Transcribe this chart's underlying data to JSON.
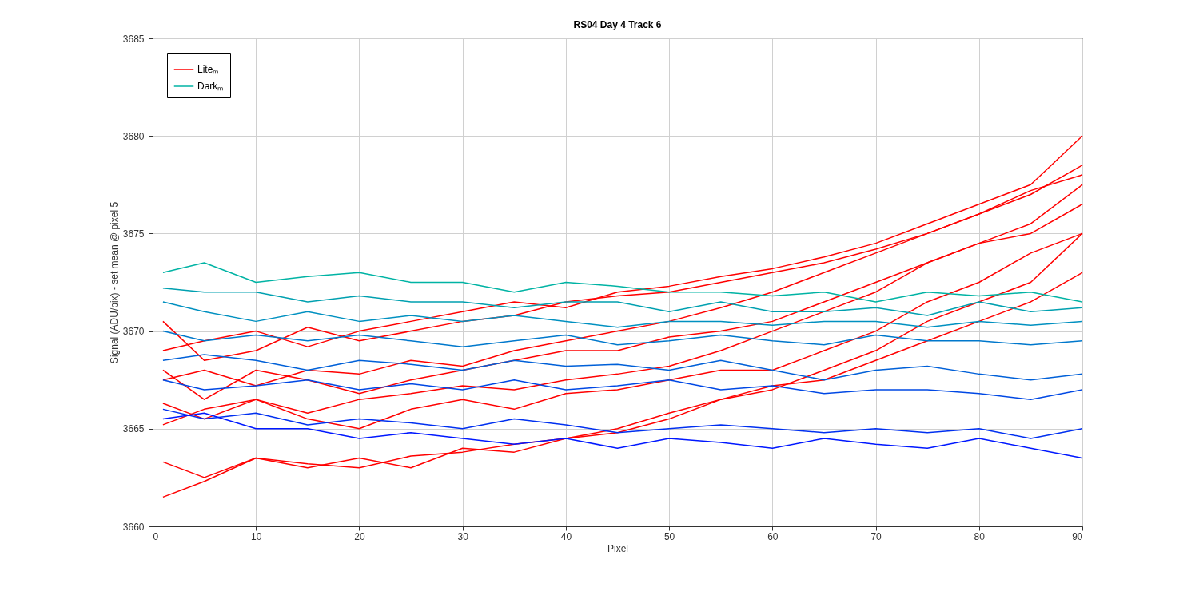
{
  "chart_data": {
    "type": "line",
    "title": "RS04 Day 4 Track 6",
    "xlabel": "Pixel",
    "ylabel": "Signal (ADU/pix) - set mean @ pixel 5",
    "x": [
      1,
      5,
      10,
      15,
      20,
      25,
      30,
      35,
      40,
      45,
      50,
      55,
      60,
      65,
      70,
      75,
      80,
      85,
      90
    ],
    "xlim": [
      0,
      90
    ],
    "xticks": [
      0,
      10,
      20,
      30,
      40,
      50,
      60,
      70,
      80,
      90
    ],
    "ylim": [
      3660,
      3685
    ],
    "yticks": [
      3660,
      3665,
      3670,
      3675,
      3680,
      3685
    ],
    "grid": true,
    "legend": "top left",
    "series": [
      {
        "name": "Liteₘ",
        "color": "#ff0000",
        "values": [
          3661.5,
          3662.3,
          3663.5,
          3663.2,
          3663.0,
          3663.6,
          3663.8,
          3664.2,
          3664.5,
          3665.0,
          3665.8,
          3666.5,
          3667.2,
          3667.5,
          3668.5,
          3669.5,
          3670.5,
          3671.5,
          3673.0
        ]
      },
      {
        "color": "#ff0000",
        "values": [
          3663.3,
          3662.5,
          3663.5,
          3663.0,
          3663.5,
          3663.0,
          3664.0,
          3663.8,
          3664.5,
          3664.8,
          3665.5,
          3666.5,
          3667.0,
          3668.0,
          3669.0,
          3670.5,
          3671.5,
          3672.5,
          3675.0
        ]
      },
      {
        "color": "#ff0000",
        "values": [
          3665.2,
          3666.0,
          3666.5,
          3665.8,
          3666.5,
          3666.8,
          3667.2,
          3667.0,
          3667.5,
          3667.8,
          3668.2,
          3669.0,
          3670.0,
          3671.0,
          3672.0,
          3673.5,
          3674.5,
          3675.5,
          3677.5
        ]
      },
      {
        "color": "#ff0000",
        "values": [
          3667.5,
          3668.0,
          3667.2,
          3668.0,
          3667.8,
          3668.5,
          3668.2,
          3669.0,
          3669.5,
          3670.0,
          3670.5,
          3671.2,
          3672.0,
          3673.0,
          3674.0,
          3675.0,
          3676.0,
          3677.0,
          3678.5
        ]
      },
      {
        "color": "#ff0000",
        "values": [
          3669.0,
          3669.5,
          3670.0,
          3669.2,
          3670.0,
          3670.5,
          3671.0,
          3671.5,
          3671.2,
          3672.0,
          3672.3,
          3672.8,
          3673.2,
          3673.8,
          3674.5,
          3675.5,
          3676.5,
          3677.5,
          3680.0
        ]
      },
      {
        "color": "#ff0000",
        "values": [
          3670.5,
          3668.5,
          3669.0,
          3670.2,
          3669.5,
          3670.0,
          3670.5,
          3670.8,
          3671.5,
          3671.8,
          3672.0,
          3672.5,
          3673.0,
          3673.5,
          3674.2,
          3675.0,
          3676.0,
          3677.2,
          3678.0
        ]
      },
      {
        "color": "#ff0000",
        "values": [
          3668.0,
          3666.5,
          3668.0,
          3667.5,
          3666.8,
          3667.5,
          3668.0,
          3668.5,
          3669.0,
          3669.0,
          3669.7,
          3670.0,
          3670.5,
          3671.5,
          3672.5,
          3673.5,
          3674.5,
          3675.0,
          3676.5
        ]
      },
      {
        "color": "#ff0000",
        "values": [
          3666.3,
          3665.5,
          3666.5,
          3665.5,
          3665.0,
          3666.0,
          3666.5,
          3666.0,
          3666.8,
          3667.0,
          3667.5,
          3668.0,
          3668.0,
          3669.0,
          3670.0,
          3671.5,
          3672.5,
          3674.0,
          3675.0
        ]
      },
      {
        "name": "Darkₘ",
        "color": "#00b3a4",
        "values": [
          3673.0,
          3673.5,
          3672.5,
          3672.8,
          3673.0,
          3672.5,
          3672.5,
          3672.0,
          3672.5,
          3672.3,
          3672.0,
          3672.0,
          3671.8,
          3672.0,
          3671.5,
          3672.0,
          3671.8,
          3672.0,
          3671.5
        ]
      },
      {
        "color": "#00a0b0",
        "values": [
          3672.2,
          3672.0,
          3672.0,
          3671.5,
          3671.8,
          3671.5,
          3671.5,
          3671.2,
          3671.5,
          3671.5,
          3671.0,
          3671.5,
          3671.0,
          3671.0,
          3671.2,
          3670.8,
          3671.5,
          3671.0,
          3671.2
        ]
      },
      {
        "color": "#0090c0",
        "values": [
          3671.5,
          3671.0,
          3670.5,
          3671.0,
          3670.5,
          3670.8,
          3670.5,
          3670.8,
          3670.5,
          3670.2,
          3670.5,
          3670.5,
          3670.3,
          3670.5,
          3670.5,
          3670.2,
          3670.5,
          3670.3,
          3670.5
        ]
      },
      {
        "color": "#0078cc",
        "values": [
          3670.0,
          3669.5,
          3669.8,
          3669.5,
          3669.8,
          3669.5,
          3669.2,
          3669.5,
          3669.8,
          3669.3,
          3669.5,
          3669.8,
          3669.5,
          3669.3,
          3669.8,
          3669.5,
          3669.5,
          3669.3,
          3669.5
        ]
      },
      {
        "color": "#0060d8",
        "values": [
          3668.5,
          3668.8,
          3668.5,
          3668.0,
          3668.5,
          3668.3,
          3668.0,
          3668.5,
          3668.2,
          3668.3,
          3668.0,
          3668.5,
          3668.0,
          3667.5,
          3668.0,
          3668.2,
          3667.8,
          3667.5,
          3667.8
        ]
      },
      {
        "color": "#0048e4",
        "values": [
          3667.5,
          3667.0,
          3667.2,
          3667.5,
          3667.0,
          3667.3,
          3667.0,
          3667.5,
          3667.0,
          3667.2,
          3667.5,
          3667.0,
          3667.2,
          3666.8,
          3667.0,
          3667.0,
          3666.8,
          3666.5,
          3667.0
        ]
      },
      {
        "color": "#0030f0",
        "values": [
          3666.0,
          3665.5,
          3665.8,
          3665.2,
          3665.5,
          3665.3,
          3665.0,
          3665.5,
          3665.2,
          3664.8,
          3665.0,
          3665.2,
          3665.0,
          3664.8,
          3665.0,
          3664.8,
          3665.0,
          3664.5,
          3665.0
        ]
      },
      {
        "color": "#0018ff",
        "values": [
          3665.5,
          3665.8,
          3665.0,
          3665.0,
          3664.5,
          3664.8,
          3664.5,
          3664.2,
          3664.5,
          3664.0,
          3664.5,
          3664.3,
          3664.0,
          3664.5,
          3664.2,
          3664.0,
          3664.5,
          3664.0,
          3663.5
        ]
      }
    ]
  }
}
